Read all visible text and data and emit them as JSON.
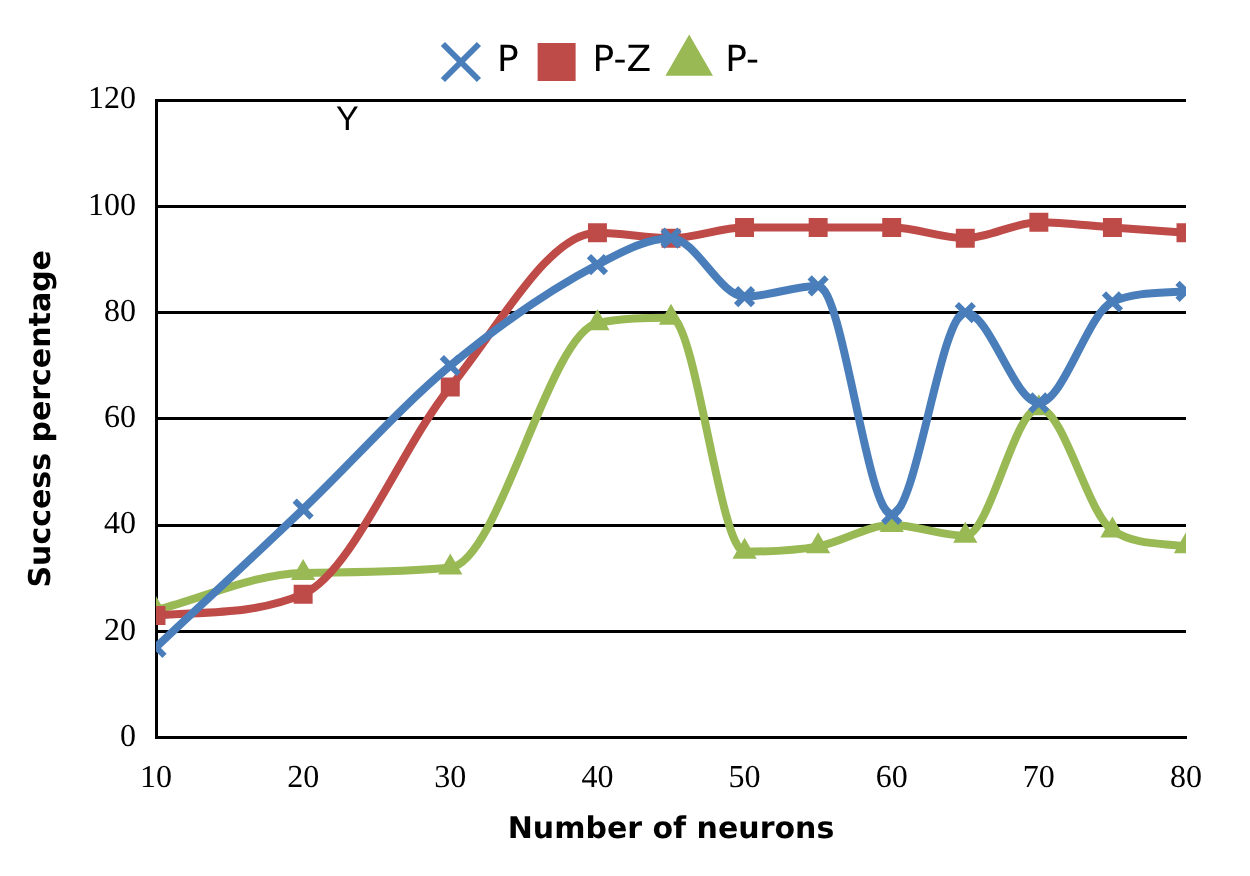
{
  "chart_data": {
    "type": "line",
    "xlabel": "Number of neurons",
    "ylabel": "Success percentage",
    "annotations": [
      "Y"
    ],
    "x": [
      10,
      20,
      30,
      40,
      45,
      50,
      55,
      60,
      65,
      70,
      75,
      80
    ],
    "series": [
      {
        "name": "P",
        "color": "#4a7ebb",
        "marker": "cross",
        "values": [
          17,
          43,
          70,
          89,
          94,
          83,
          85,
          42,
          80,
          63,
          82,
          84
        ]
      },
      {
        "name": "P-Z",
        "color": "#be4b48",
        "marker": "square",
        "values": [
          23,
          27,
          66,
          95,
          94,
          96,
          96,
          96,
          94,
          97,
          96,
          95
        ]
      },
      {
        "name": "P-",
        "color": "#98b954",
        "marker": "triangle",
        "values": [
          24,
          31,
          32,
          78,
          79,
          35,
          36,
          40,
          38,
          62,
          39,
          36
        ]
      }
    ],
    "xlim": [
      10,
      80
    ],
    "xticks": [
      10,
      20,
      30,
      40,
      50,
      60,
      70,
      80
    ],
    "ylim": [
      0,
      120
    ],
    "yticks": [
      0,
      20,
      40,
      60,
      80,
      100,
      120
    ],
    "grid": "y",
    "legend": "top"
  }
}
